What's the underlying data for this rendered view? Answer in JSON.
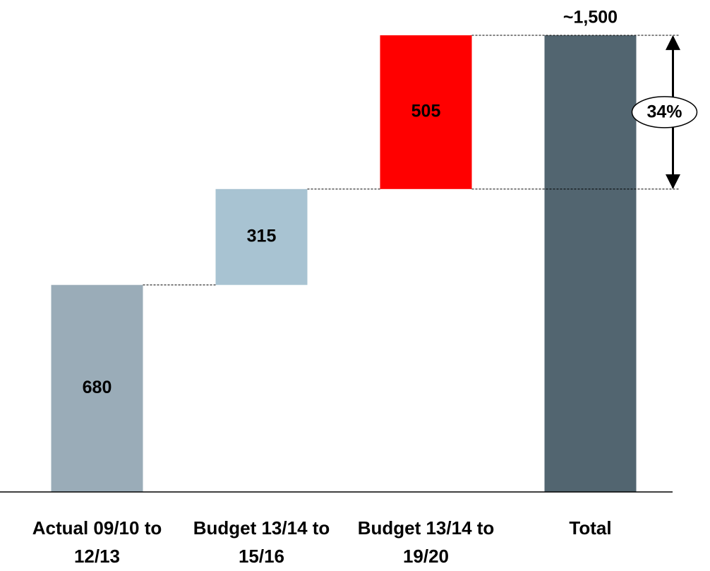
{
  "chart_data": {
    "type": "waterfall",
    "categories": [
      "Actual 09/10 to 12/13",
      "Budget 13/14 to 15/16",
      "Budget 13/14 to 19/20",
      "Total"
    ],
    "values": [
      680,
      315,
      505,
      1500
    ],
    "value_labels": [
      "680",
      "315",
      "505",
      "~1,500"
    ],
    "measure": [
      "relative",
      "relative",
      "relative",
      "total"
    ],
    "colors": [
      "#9aacb8",
      "#a8c3d2",
      "#ff0000",
      "#526570"
    ],
    "ylim": [
      0,
      1500
    ],
    "annotation": "34%"
  }
}
